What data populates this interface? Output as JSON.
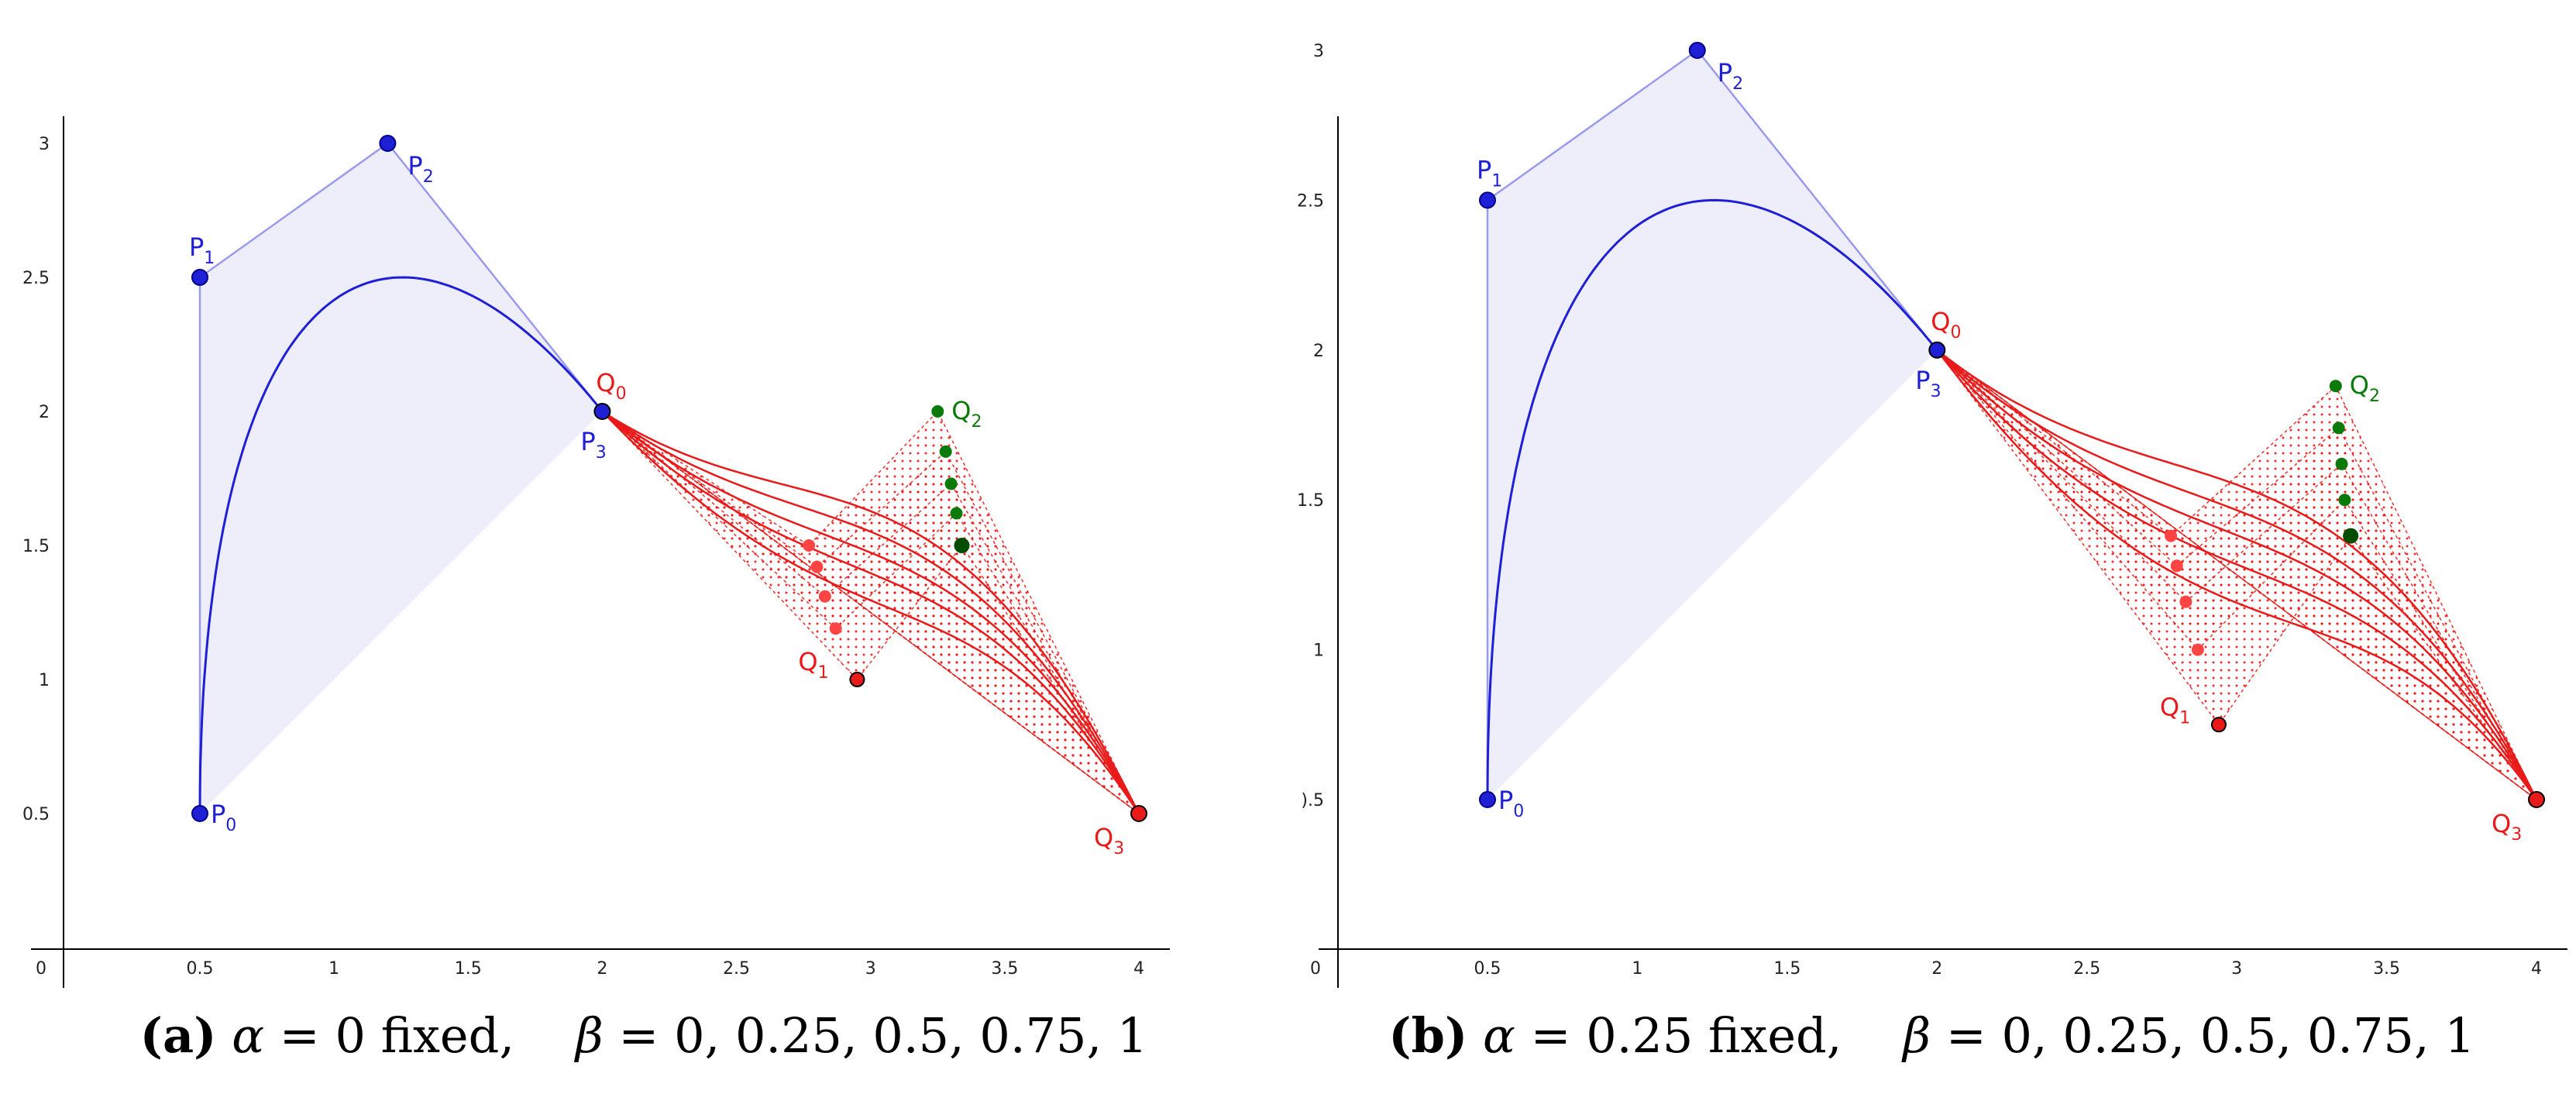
{
  "colors": {
    "blue": "#1f1fd6",
    "blue_fill": "#eeeefb",
    "blue_edge": "#9a9aee",
    "red": "#e81a1a",
    "red_dot": "#ff4444",
    "green": "#0a7a0a",
    "dark_green": "#034d03",
    "axis": "#000000"
  },
  "panels": [
    {
      "id": "a",
      "caption": {
        "label": "(a)",
        "alpha": "α",
        "alpha_text": " = 0 fixed,",
        "beta": "β",
        "beta_text": " = 0, 0.25, 0.5, 0.75, 1"
      },
      "x_ticks": [
        "0.5",
        "1",
        "1.5",
        "2",
        "2.5",
        "3",
        "3.5",
        "4"
      ],
      "y_ticks": [
        "0.5",
        "1",
        "1.5",
        "2",
        "2.5",
        "3"
      ],
      "origin_label": "0",
      "P": [
        [
          0.5,
          0.5
        ],
        [
          0.5,
          2.5
        ],
        [
          1.2,
          3.0
        ],
        [
          2.0,
          2.0
        ]
      ],
      "Q": [
        [
          2.0,
          2.0
        ],
        [
          2.95,
          1.0
        ],
        [
          3.25,
          2.0
        ],
        [
          4.0,
          0.5
        ]
      ],
      "Q1_family": [
        [
          2.95,
          1.0
        ],
        [
          2.87,
          1.19
        ],
        [
          2.83,
          1.31
        ],
        [
          2.8,
          1.42
        ],
        [
          2.77,
          1.5
        ]
      ],
      "Q2_family": [
        [
          3.34,
          1.5
        ],
        [
          3.32,
          1.62
        ],
        [
          3.3,
          1.73
        ],
        [
          3.28,
          1.85
        ],
        [
          3.25,
          2.0
        ]
      ],
      "labels": {
        "P0": "P",
        "P0s": "0",
        "P1": "P",
        "P1s": "1",
        "P2": "P",
        "P2s": "2",
        "P3": "P",
        "P3s": "3",
        "Q0": "Q",
        "Q0s": "0",
        "Q1": "Q",
        "Q1s": "1",
        "Q2": "Q",
        "Q2s": "2",
        "Q3": "Q",
        "Q3s": "3"
      }
    },
    {
      "id": "b",
      "caption": {
        "label": "(b)",
        "alpha": "α",
        "alpha_text": " = 0.25 fixed,",
        "beta": "β",
        "beta_text": " = 0, 0.25, 0.5, 0.75, 1"
      },
      "x_ticks": [
        "0.5",
        "1",
        "1.5",
        "2",
        "2.5",
        "3",
        "3.5",
        "4"
      ],
      "y_ticks": [
        ").5",
        "1",
        "1.5",
        "2",
        "2.5",
        "3"
      ],
      "origin_label": "0",
      "P": [
        [
          0.5,
          0.5
        ],
        [
          0.5,
          2.5
        ],
        [
          1.2,
          3.0
        ],
        [
          2.0,
          2.0
        ]
      ],
      "Q": [
        [
          2.0,
          2.0
        ],
        [
          2.94,
          0.75
        ],
        [
          3.33,
          1.88
        ],
        [
          4.0,
          0.5
        ]
      ],
      "Q1_family": [
        [
          2.94,
          0.75
        ],
        [
          2.87,
          1.0
        ],
        [
          2.83,
          1.16
        ],
        [
          2.8,
          1.28
        ],
        [
          2.78,
          1.38
        ]
      ],
      "Q2_family": [
        [
          3.38,
          1.38
        ],
        [
          3.36,
          1.5
        ],
        [
          3.35,
          1.62
        ],
        [
          3.34,
          1.74
        ],
        [
          3.33,
          1.88
        ]
      ],
      "labels": {
        "P0": "P",
        "P0s": "0",
        "P1": "P",
        "P1s": "1",
        "P2": "P",
        "P2s": "2",
        "P3": "P",
        "P3s": "3",
        "Q0": "Q",
        "Q0s": "0",
        "Q1": "Q",
        "Q1s": "1",
        "Q2": "Q",
        "Q2s": "2",
        "Q3": "Q",
        "Q3s": "3"
      }
    }
  ]
}
